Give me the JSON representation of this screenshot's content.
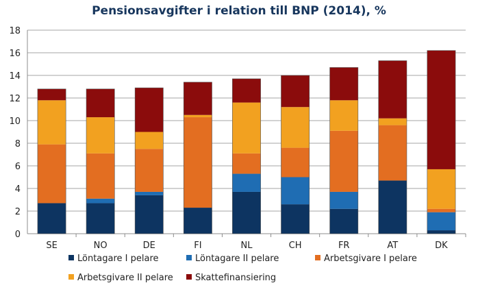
{
  "chart_data": {
    "type": "bar",
    "stacked": true,
    "title": "Pensionsavgifter i relation till BNP (2014), %",
    "xlabel": "",
    "ylabel": "",
    "ylim": [
      0,
      18
    ],
    "yticks": [
      0,
      2,
      4,
      6,
      8,
      10,
      12,
      14,
      16,
      18
    ],
    "grid": true,
    "legend_position": "bottom",
    "categories": [
      "SE",
      "NO",
      "DE",
      "FI",
      "NL",
      "CH",
      "FR",
      "AT",
      "DK"
    ],
    "series": [
      {
        "name": "Löntagare I pelare",
        "color": "#0d3461",
        "values": [
          2.7,
          2.7,
          3.4,
          2.3,
          3.7,
          2.6,
          2.2,
          4.7,
          0.3
        ]
      },
      {
        "name": "Löntagare II pelare",
        "color": "#1f6db3",
        "values": [
          0.0,
          0.4,
          0.3,
          0.0,
          1.6,
          2.4,
          1.5,
          0.0,
          1.6
        ]
      },
      {
        "name": "Arbetsgivare I pelare",
        "color": "#e36e21",
        "values": [
          5.2,
          4.0,
          3.8,
          8.0,
          1.8,
          2.6,
          5.4,
          4.9,
          0.3
        ]
      },
      {
        "name": "Arbetsgivare II pelare",
        "color": "#f2a120",
        "values": [
          3.9,
          3.2,
          1.5,
          0.2,
          4.5,
          3.6,
          2.7,
          0.6,
          3.5
        ]
      },
      {
        "name": "Skattefinansiering",
        "color": "#8b0c0c",
        "values": [
          1.0,
          2.5,
          3.9,
          2.9,
          2.1,
          2.8,
          2.9,
          5.1,
          10.5
        ]
      }
    ]
  }
}
